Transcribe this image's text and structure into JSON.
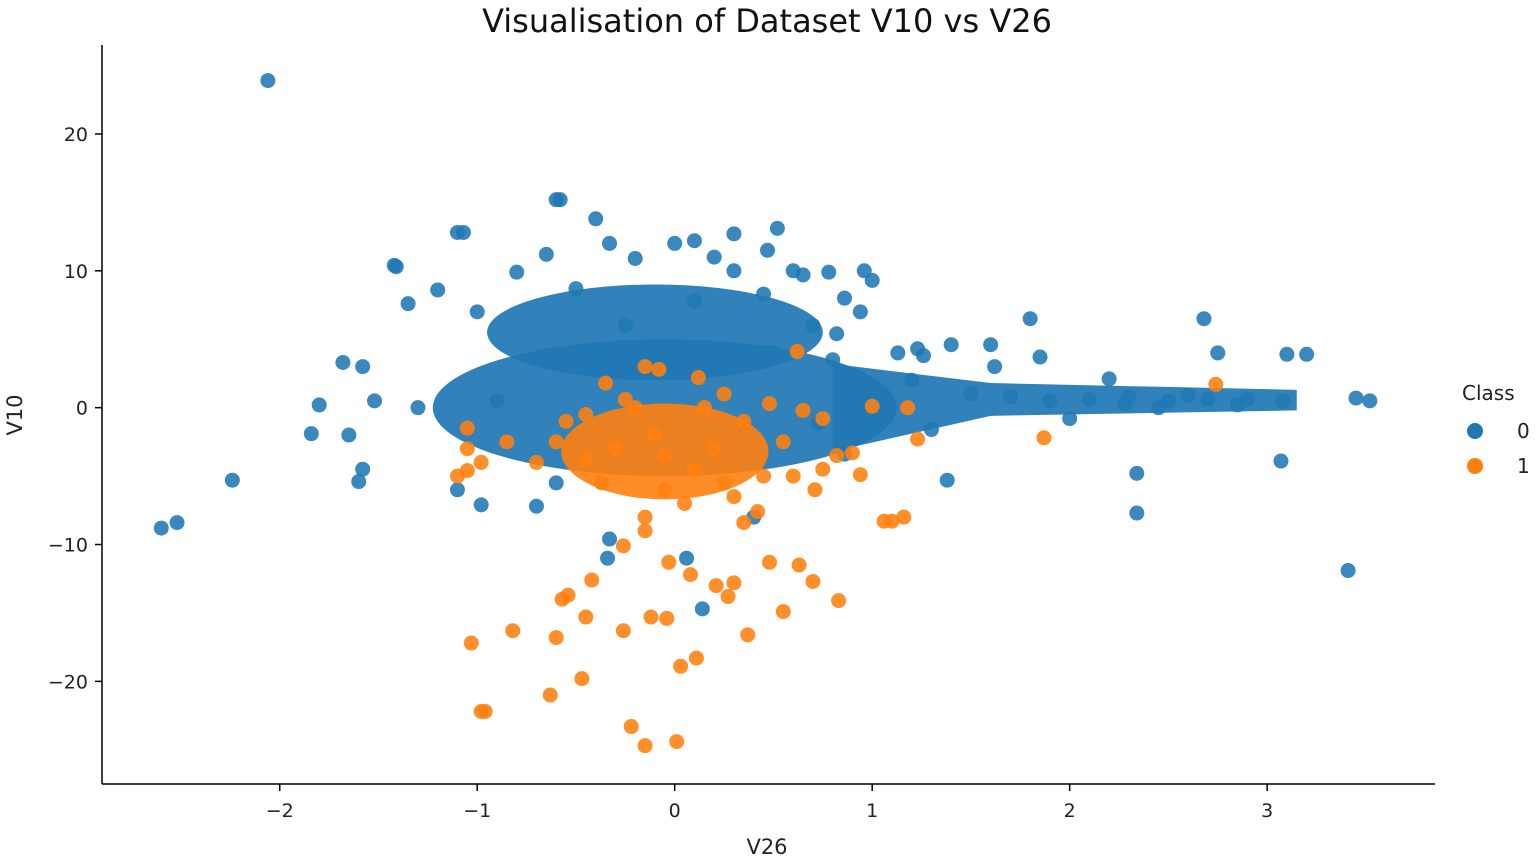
{
  "chart_data": {
    "type": "scatter",
    "title": "Visualisation of Dataset V10 vs V26",
    "xlabel": "V26",
    "ylabel": "V10",
    "xlim": [
      -2.9,
      3.85
    ],
    "ylim": [
      -27.5,
      26.5
    ],
    "xticks": [
      -2,
      -1,
      0,
      1,
      2,
      3
    ],
    "xtick_labels": [
      "−2",
      "−1",
      "0",
      "1",
      "2",
      "3"
    ],
    "yticks": [
      -20,
      -10,
      0,
      10,
      20
    ],
    "ytick_labels": [
      "−20",
      "−10",
      "0",
      "10",
      "20"
    ],
    "grid": false,
    "legend": {
      "title": "Class",
      "placement": "right"
    },
    "series": [
      {
        "name": "0",
        "color": "#1f77b4",
        "cluster_center": [
          -0.05,
          0
        ],
        "points": [
          [
            -2.06,
            23.9
          ],
          [
            -2.6,
            -8.8
          ],
          [
            -2.52,
            -8.4
          ],
          [
            -2.24,
            -5.3
          ],
          [
            -1.84,
            -1.9
          ],
          [
            -1.6,
            -5.4
          ],
          [
            -1.58,
            -4.5
          ],
          [
            -1.65,
            -2.0
          ],
          [
            -1.42,
            10.4
          ],
          [
            -1.41,
            10.3
          ],
          [
            -1.1,
            12.8
          ],
          [
            -1.07,
            12.8
          ],
          [
            -1.2,
            8.6
          ],
          [
            -1.68,
            3.3
          ],
          [
            -1.58,
            3.0
          ],
          [
            -1.1,
            -6.0
          ],
          [
            -0.98,
            -7.1
          ],
          [
            -0.6,
            15.2
          ],
          [
            -0.58,
            15.2
          ],
          [
            -0.4,
            13.8
          ],
          [
            0.3,
            12.7
          ],
          [
            0.52,
            13.1
          ],
          [
            0.47,
            11.5
          ],
          [
            0.6,
            10.0
          ],
          [
            0.65,
            9.7
          ],
          [
            0.78,
            9.9
          ],
          [
            0.96,
            10.0
          ],
          [
            1.0,
            9.3
          ],
          [
            0.86,
            8.0
          ],
          [
            1.8,
            6.5
          ],
          [
            2.68,
            6.5
          ],
          [
            2.75,
            4.0
          ],
          [
            3.1,
            3.9
          ],
          [
            3.2,
            3.9
          ],
          [
            3.45,
            0.7
          ],
          [
            3.52,
            0.5
          ],
          [
            3.07,
            -3.9
          ],
          [
            3.41,
            -11.9
          ],
          [
            2.34,
            -4.8
          ],
          [
            2.34,
            -7.7
          ],
          [
            1.38,
            -5.3
          ],
          [
            1.4,
            4.6
          ],
          [
            1.6,
            4.6
          ],
          [
            1.85,
            3.7
          ],
          [
            0.14,
            -14.7
          ],
          [
            0.06,
            -11.0
          ],
          [
            -0.33,
            -9.6
          ],
          [
            -0.34,
            -11.0
          ],
          [
            -0.38,
            4.0
          ],
          [
            -0.1,
            3.0
          ],
          [
            0.5,
            4.0
          ],
          [
            0.8,
            3.5
          ],
          [
            1.23,
            4.3
          ],
          [
            1.26,
            3.8
          ],
          [
            1.2,
            2.0
          ],
          [
            1.5,
            1.0
          ],
          [
            1.7,
            0.8
          ],
          [
            1.9,
            0.5
          ],
          [
            2.1,
            0.6
          ],
          [
            2.3,
            0.8
          ],
          [
            2.5,
            0.5
          ],
          [
            2.7,
            0.6
          ],
          [
            2.9,
            0.6
          ],
          [
            3.08,
            0.5
          ],
          [
            2.2,
            2.1
          ],
          [
            2.45,
            0.0
          ],
          [
            2.0,
            -0.8
          ],
          [
            1.02,
            -1.0
          ],
          [
            1.3,
            -1.6
          ],
          [
            0.86,
            -3.4
          ],
          [
            0.73,
            -1.1
          ],
          [
            0.4,
            -8.0
          ],
          [
            -0.7,
            -7.2
          ],
          [
            -0.6,
            -5.5
          ],
          [
            -0.9,
            0.5
          ],
          [
            -1.3,
            0.0
          ],
          [
            -1.52,
            0.5
          ],
          [
            -1.8,
            0.2
          ],
          [
            -1.35,
            7.6
          ],
          [
            -1.0,
            7.0
          ],
          [
            -0.65,
            11.2
          ],
          [
            -0.8,
            9.9
          ],
          [
            -0.33,
            12.0
          ],
          [
            -0.2,
            10.9
          ],
          [
            0.0,
            12.0
          ],
          [
            0.1,
            12.2
          ],
          [
            0.2,
            11.0
          ],
          [
            0.45,
            8.3
          ],
          [
            0.3,
            10.0
          ],
          [
            0.94,
            7.0
          ],
          [
            2.28,
            0.3
          ],
          [
            2.85,
            0.2
          ],
          [
            2.6,
            0.9
          ],
          [
            1.13,
            4.0
          ],
          [
            1.62,
            3.0
          ],
          [
            -0.25,
            6.0
          ],
          [
            0.1,
            7.8
          ],
          [
            -0.5,
            8.7
          ],
          [
            0.7,
            6.0
          ],
          [
            0.82,
            5.4
          ]
        ]
      },
      {
        "name": "1",
        "color": "#ff7f0e",
        "points": [
          [
            -0.2,
            0.0
          ],
          [
            -0.1,
            -2.0
          ],
          [
            -0.3,
            -3.0
          ],
          [
            -0.05,
            -3.5
          ],
          [
            0.1,
            -4.5
          ],
          [
            0.2,
            -3.0
          ],
          [
            0.35,
            -1.0
          ],
          [
            0.45,
            -5.0
          ],
          [
            -0.45,
            -3.8
          ],
          [
            -0.55,
            -1.0
          ],
          [
            -0.6,
            -2.5
          ],
          [
            -0.15,
            3.0
          ],
          [
            -0.08,
            2.8
          ],
          [
            -0.35,
            1.8
          ],
          [
            0.25,
            1.0
          ],
          [
            0.48,
            0.3
          ],
          [
            0.62,
            4.1
          ],
          [
            0.65,
            -0.2
          ],
          [
            0.9,
            -3.3
          ],
          [
            0.75,
            -4.5
          ],
          [
            1.0,
            0.1
          ],
          [
            1.18,
            0.0
          ],
          [
            1.23,
            -2.3
          ],
          [
            1.87,
            -2.2
          ],
          [
            2.74,
            1.7
          ],
          [
            1.1,
            -8.3
          ],
          [
            1.16,
            -8.0
          ],
          [
            1.06,
            -8.3
          ],
          [
            0.94,
            -4.9
          ],
          [
            0.71,
            -6.0
          ],
          [
            -0.15,
            -9.0
          ],
          [
            -0.26,
            -10.1
          ],
          [
            -0.03,
            -11.3
          ],
          [
            0.08,
            -12.2
          ],
          [
            0.3,
            -12.8
          ],
          [
            0.48,
            -11.3
          ],
          [
            0.63,
            -11.5
          ],
          [
            0.7,
            -12.7
          ],
          [
            0.83,
            -14.1
          ],
          [
            0.55,
            -14.9
          ],
          [
            0.37,
            -16.6
          ],
          [
            0.11,
            -18.3
          ],
          [
            0.03,
            -18.9
          ],
          [
            -0.04,
            -15.4
          ],
          [
            -0.26,
            -16.3
          ],
          [
            -0.45,
            -15.3
          ],
          [
            -0.54,
            -13.7
          ],
          [
            -0.42,
            -12.6
          ],
          [
            -0.6,
            -16.8
          ],
          [
            -0.57,
            -14.0
          ],
          [
            -0.82,
            -16.3
          ],
          [
            -1.03,
            -17.2
          ],
          [
            -0.98,
            -22.2
          ],
          [
            -0.96,
            -22.2
          ],
          [
            -0.63,
            -21.0
          ],
          [
            -0.47,
            -19.8
          ],
          [
            -0.22,
            -23.3
          ],
          [
            -0.15,
            -24.7
          ],
          [
            0.01,
            -24.4
          ],
          [
            -0.12,
            -15.3
          ],
          [
            0.21,
            -13.0
          ],
          [
            0.27,
            -13.8
          ],
          [
            -1.05,
            -1.5
          ],
          [
            -1.05,
            -3.0
          ],
          [
            -1.05,
            -4.6
          ],
          [
            -0.98,
            -4.0
          ],
          [
            -1.1,
            -5.0
          ],
          [
            -0.7,
            -4.0
          ],
          [
            -0.25,
            0.6
          ],
          [
            0.15,
            0.0
          ],
          [
            0.55,
            -2.5
          ],
          [
            -0.37,
            -5.5
          ],
          [
            -0.05,
            -6.0
          ],
          [
            0.3,
            -6.5
          ],
          [
            0.05,
            -7.0
          ],
          [
            -0.15,
            -8.0
          ],
          [
            0.35,
            -8.4
          ],
          [
            0.6,
            -5.0
          ],
          [
            0.82,
            -3.5
          ],
          [
            -0.85,
            -2.5
          ],
          [
            0.12,
            2.2
          ],
          [
            -0.45,
            -0.5
          ],
          [
            0.75,
            -0.8
          ],
          [
            0.42,
            -7.6
          ],
          [
            0.25,
            -5.5
          ]
        ]
      }
    ]
  }
}
